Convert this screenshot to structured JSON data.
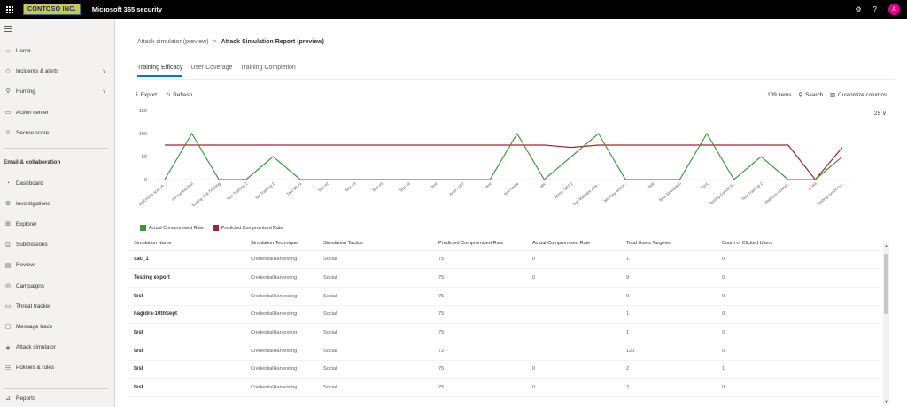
{
  "topbar": {
    "org_logo": "CONTOSO INC.",
    "app_title": "Microsoft 365 security",
    "avatar_initial": "A",
    "help_label": "?"
  },
  "sidebar": {
    "items_top": [
      {
        "label": "Home",
        "icon": "home-icon",
        "glyph": "⌂"
      },
      {
        "label": "Incidents & alerts",
        "icon": "shield-icon",
        "glyph": "◇",
        "chevron": "∨"
      },
      {
        "label": "Hunting",
        "icon": "hunting-icon",
        "glyph": "⚲",
        "chevron": "∨"
      },
      {
        "label": "Action center",
        "icon": "action-center-icon",
        "glyph": "▭"
      },
      {
        "label": "Secure score",
        "icon": "secure-score-icon",
        "glyph": "♕"
      }
    ],
    "section_label": "Email & collaboration",
    "items_email": [
      {
        "label": "Dashboard",
        "icon": "dashboard-icon",
        "glyph": "◔"
      },
      {
        "label": "Investigations",
        "icon": "investigations-icon",
        "glyph": "⚙"
      },
      {
        "label": "Explorer",
        "icon": "explorer-icon",
        "glyph": "⊞"
      },
      {
        "label": "Submissions",
        "icon": "submissions-icon",
        "glyph": "⊡"
      },
      {
        "label": "Review",
        "icon": "review-icon",
        "glyph": "▤"
      },
      {
        "label": "Campaigns",
        "icon": "campaigns-icon",
        "glyph": "◎"
      },
      {
        "label": "Threat tracker",
        "icon": "threat-tracker-icon",
        "glyph": "▭"
      },
      {
        "label": "Message trace",
        "icon": "message-trace-icon",
        "glyph": "▢"
      },
      {
        "label": "Attack simulator",
        "icon": "attack-simulator-icon",
        "glyph": "◈"
      },
      {
        "label": "Policies & rules",
        "icon": "policies-icon",
        "glyph": "☷"
      }
    ],
    "items_bottom": [
      {
        "label": "Reports",
        "icon": "reports-icon",
        "glyph": "⊿"
      }
    ]
  },
  "breadcrumb": {
    "parent": "Attack simulator (preview)",
    "separator": ">",
    "current": "Attack Simulation Report (preview)"
  },
  "tabs": [
    "Training Efficacy",
    "User Coverage",
    "Training Completion"
  ],
  "toolbar": {
    "export_label": "Export",
    "refresh_label": "Refresh",
    "items_count": "109 items",
    "search_label": "Search",
    "customize_label": "Customize columns",
    "page_size": "25"
  },
  "chart_data": {
    "type": "line",
    "ylim": [
      0,
      150
    ],
    "yticks": [
      0,
      50,
      100,
      150
    ],
    "grid": false,
    "legend_position": "bottom-left",
    "categories": [
      "POCHolls scan-A...",
      "InProgressTest",
      "Testing Test Training",
      "Test Training 2",
      "No Training 2",
      "Test 88 #1",
      "Test #2",
      "Test #3",
      "Test #3",
      "Test #4",
      "test",
      "Auto - 087",
      "test",
      "test-name",
      "abc",
      "ahmic SAT 1",
      "Test Malware Atta...",
      "Monkey-test-tr...",
      "test",
      "New Simulation",
      "Test1",
      "Testing Cancel 9...",
      "Test Training 2",
      "Malware-ucwsd...",
      "AG44",
      "Testing custom-u..."
    ],
    "series": [
      {
        "name": "Actual Compromised Rate",
        "color": "#3a9a3a",
        "values": [
          0,
          100,
          0,
          0,
          50,
          0,
          0,
          0,
          0,
          0,
          0,
          0,
          0,
          100,
          0,
          50,
          100,
          0,
          0,
          0,
          100,
          0,
          50,
          0,
          0,
          50
        ]
      },
      {
        "name": "Predicted Compromised Rate",
        "color": "#a4262c",
        "values": [
          75,
          75,
          75,
          75,
          75,
          75,
          75,
          75,
          75,
          75,
          75,
          75,
          75,
          75,
          75,
          70,
          75,
          75,
          75,
          75,
          75,
          75,
          75,
          75,
          0,
          70
        ]
      }
    ]
  },
  "table": {
    "columns": [
      "Simulation Name",
      "Simulation Technique",
      "Simulation Tactics",
      "Predicted Compromised Rate",
      "Actual Compromised Rate",
      "Total Users Targeted",
      "Count of Clicked Users"
    ],
    "rows": [
      [
        "sac_1",
        "CredentialHarvesting",
        "Social",
        "75",
        "0",
        "1",
        "0"
      ],
      [
        "Testing export",
        "CredentialHarvesting",
        "Social",
        "75",
        "0",
        "9",
        "0"
      ],
      [
        "test",
        "CredentialHarvesting",
        "Social",
        "75",
        "",
        "0",
        "0"
      ],
      [
        "hagidra-10thSept",
        "CredentialHarvesting",
        "Social",
        "75",
        "",
        "1",
        "0"
      ],
      [
        "test",
        "CredentialHarvesting",
        "Social",
        "75",
        "",
        "1",
        "0"
      ],
      [
        "test",
        "CredentialHarvesting",
        "Social",
        "72",
        "",
        "120",
        "0"
      ],
      [
        "test",
        "CredentialHarvesting",
        "Social",
        "75",
        "0",
        "2",
        "1"
      ],
      [
        "test",
        "CredentialHarvesting",
        "Social",
        "75",
        "0",
        "2",
        "0"
      ]
    ]
  }
}
